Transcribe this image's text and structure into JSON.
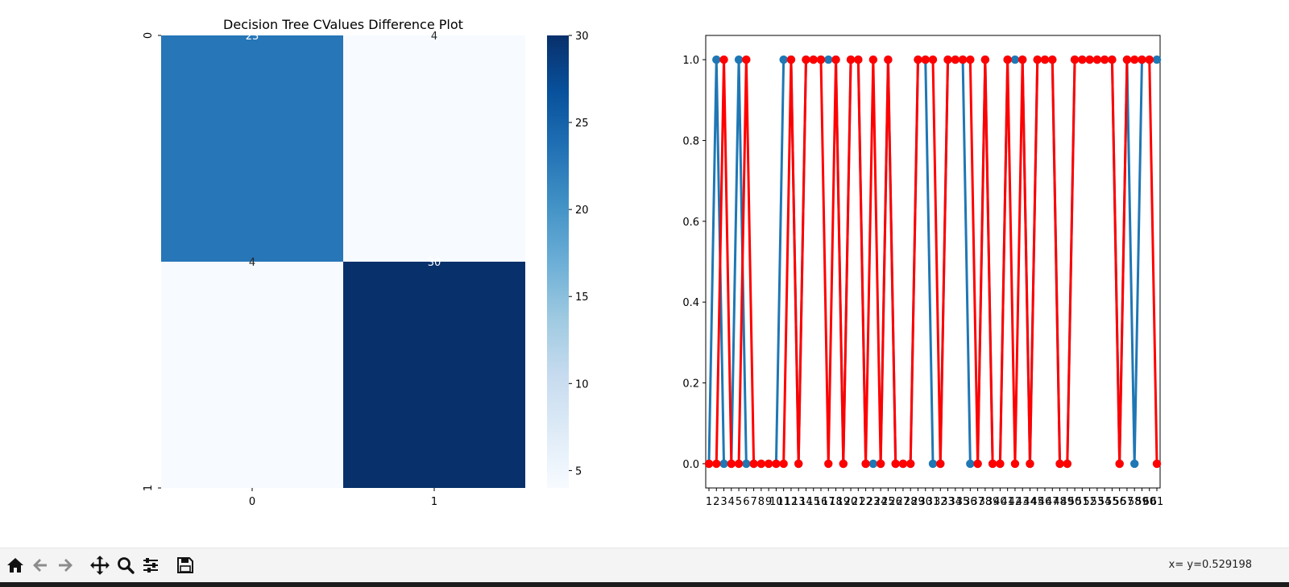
{
  "figure": {
    "title": "Decision Tree CValues Difference Plot"
  },
  "chart_data": [
    {
      "type": "heatmap",
      "title": "Decision Tree CValues Difference Plot",
      "row_labels": [
        "0",
        "1"
      ],
      "col_labels": [
        "0",
        "1"
      ],
      "values": [
        [
          23,
          4
        ],
        [
          4,
          30
        ]
      ],
      "annotations": [
        [
          "23",
          "4"
        ],
        [
          "4",
          "30"
        ]
      ],
      "colormap": "Blues",
      "colorbar": {
        "range": [
          4,
          30
        ],
        "ticks": [
          "5",
          "10",
          "15",
          "20",
          "25",
          "30"
        ]
      }
    },
    {
      "type": "line",
      "x_ticks": [
        "1",
        "2",
        "3",
        "4",
        "5",
        "6",
        "7",
        "8",
        "9",
        "10",
        "11",
        "12",
        "13",
        "14",
        "15",
        "16",
        "17",
        "18",
        "19",
        "20",
        "21",
        "22",
        "23",
        "24",
        "25",
        "26",
        "27",
        "28",
        "29",
        "30",
        "31",
        "32",
        "33",
        "34",
        "35",
        "36",
        "37",
        "38",
        "39",
        "40",
        "41",
        "42",
        "43",
        "44",
        "45",
        "46",
        "47",
        "48",
        "49",
        "50",
        "51",
        "52",
        "53",
        "54",
        "55",
        "56",
        "57",
        "58",
        "59",
        "60",
        "61"
      ],
      "yticks": [
        "0.0",
        "0.2",
        "0.4",
        "0.6",
        "0.8",
        "1.0"
      ],
      "ylim": [
        -0.06,
        1.06
      ],
      "series": [
        {
          "color": "#1f77b4",
          "values": [
            0,
            1,
            0,
            0,
            1,
            0,
            0,
            0,
            0,
            0,
            1,
            1,
            0,
            1,
            1,
            1,
            1,
            1,
            0,
            1,
            1,
            0,
            0,
            0,
            1,
            0,
            0,
            0,
            1,
            1,
            0,
            0,
            1,
            1,
            1,
            0,
            0,
            1,
            0,
            0,
            1,
            1,
            1,
            0,
            1,
            1,
            1,
            0,
            0,
            1,
            1,
            1,
            1,
            1,
            1,
            0,
            1,
            0,
            1,
            1,
            1
          ]
        },
        {
          "color": "#ff0000",
          "values": [
            0,
            0,
            1,
            0,
            0,
            1,
            0,
            0,
            0,
            0,
            0,
            1,
            0,
            1,
            1,
            1,
            0,
            1,
            0,
            1,
            1,
            0,
            1,
            0,
            1,
            0,
            0,
            0,
            1,
            1,
            1,
            0,
            1,
            1,
            1,
            1,
            0,
            1,
            0,
            0,
            1,
            0,
            1,
            0,
            1,
            1,
            1,
            0,
            0,
            1,
            1,
            1,
            1,
            1,
            1,
            0,
            1,
            1,
            1,
            1,
            0
          ]
        }
      ]
    }
  ],
  "toolbar": {
    "buttons": [
      "home-icon",
      "back-arrow-icon",
      "forward-arrow-icon",
      "pan-move-icon",
      "zoom-magnifier-icon",
      "configure-subplots-icon",
      "save-floppy-icon"
    ],
    "status": "x= y=0.529198"
  },
  "colors": {
    "toolbar_bg": "#f4f4f4",
    "blue": "#1f77b4",
    "red": "#ff0000"
  }
}
